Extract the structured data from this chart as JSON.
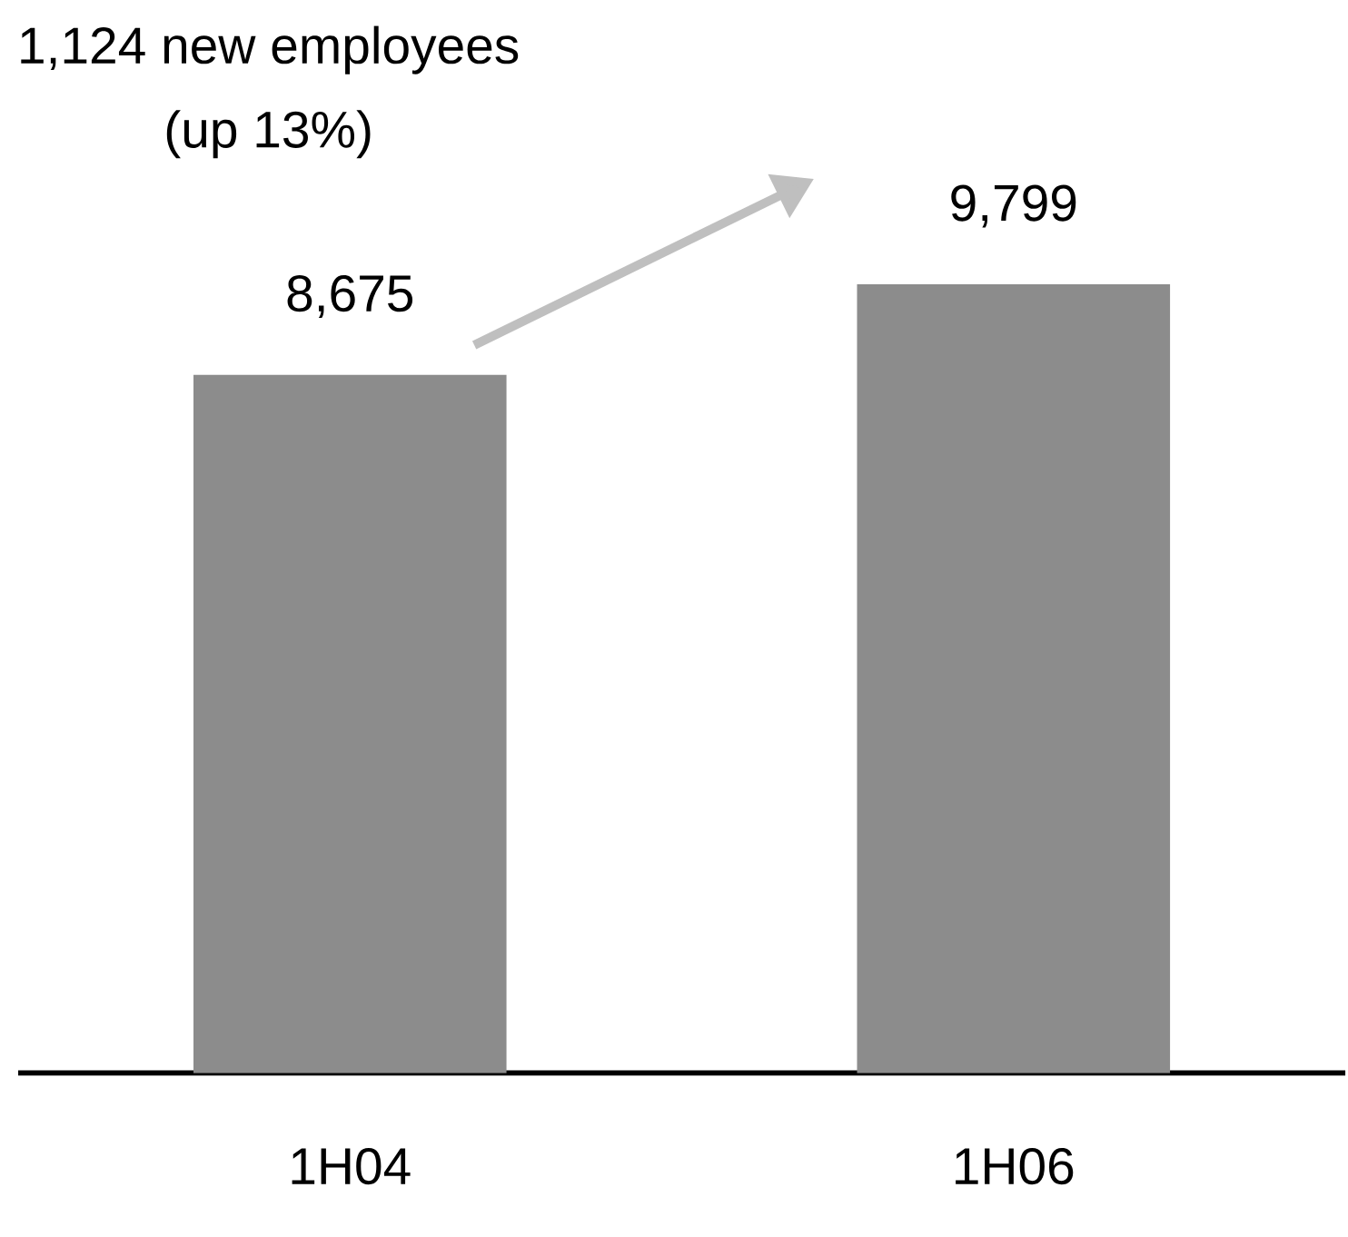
{
  "chart_data": {
    "type": "bar",
    "categories": [
      "1H04",
      "1H06"
    ],
    "values": [
      8675,
      9799
    ],
    "value_labels": [
      "8,675",
      "9,799"
    ],
    "color": "#8c8c8c",
    "annotations": [
      "1,124 new employees",
      "(up 13%)"
    ]
  }
}
